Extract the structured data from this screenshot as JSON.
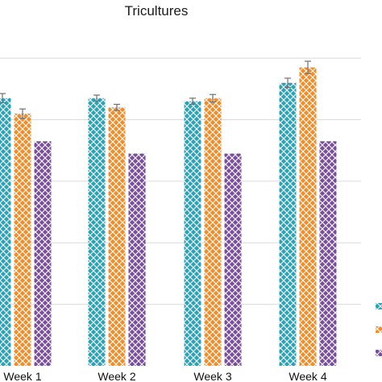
{
  "chart_data": {
    "type": "bar",
    "title": "Tricultures",
    "xlabel": "",
    "ylabel": "",
    "categories": [
      "Week 1",
      "Week 2",
      "Week 3",
      "Week 4"
    ],
    "grid": true,
    "legend": "right",
    "series": [
      {
        "color": "#2AA3B8",
        "pattern": "crosshatch",
        "values": [
          8.7,
          8.7,
          8.6,
          9.2
        ],
        "errors": [
          0.15,
          0.1,
          0.1,
          0.15
        ]
      },
      {
        "color": "#F28C28",
        "pattern": "crosshatch",
        "values": [
          8.2,
          8.4,
          8.7,
          9.7
        ],
        "errors": [
          0.15,
          0.1,
          0.12,
          0.2
        ]
      },
      {
        "color": "#7A4E9F",
        "pattern": "crosshatch",
        "values": [
          7.3,
          6.9,
          6.9,
          7.3
        ],
        "errors": [
          0,
          0,
          0,
          0
        ]
      }
    ],
    "ylim": [
      0,
      11
    ]
  }
}
